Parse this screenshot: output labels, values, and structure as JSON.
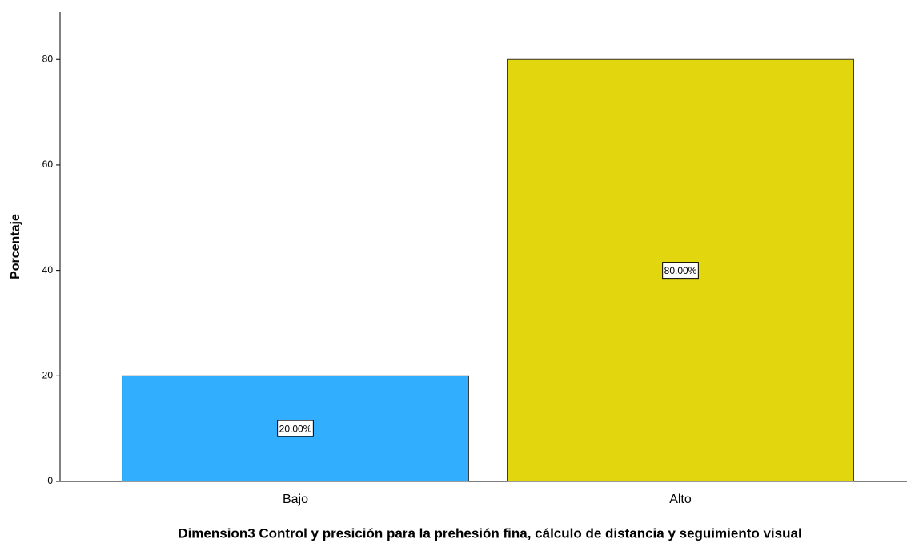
{
  "chart_data": {
    "type": "bar",
    "xlabel": "Dimension3 Control y presición para la prehesión fina, cálculo de distancia y seguimiento visual",
    "ylabel": "Porcentaje",
    "categories": [
      "Bajo",
      "Alto"
    ],
    "values": [
      20,
      80
    ],
    "value_labels": [
      "20.00%",
      "80.00%"
    ],
    "colors": [
      "#31aefe",
      "#e2d70e"
    ],
    "ylim": [
      0,
      89
    ],
    "yticks": [
      0,
      20,
      40,
      60,
      80
    ],
    "grid": false
  }
}
